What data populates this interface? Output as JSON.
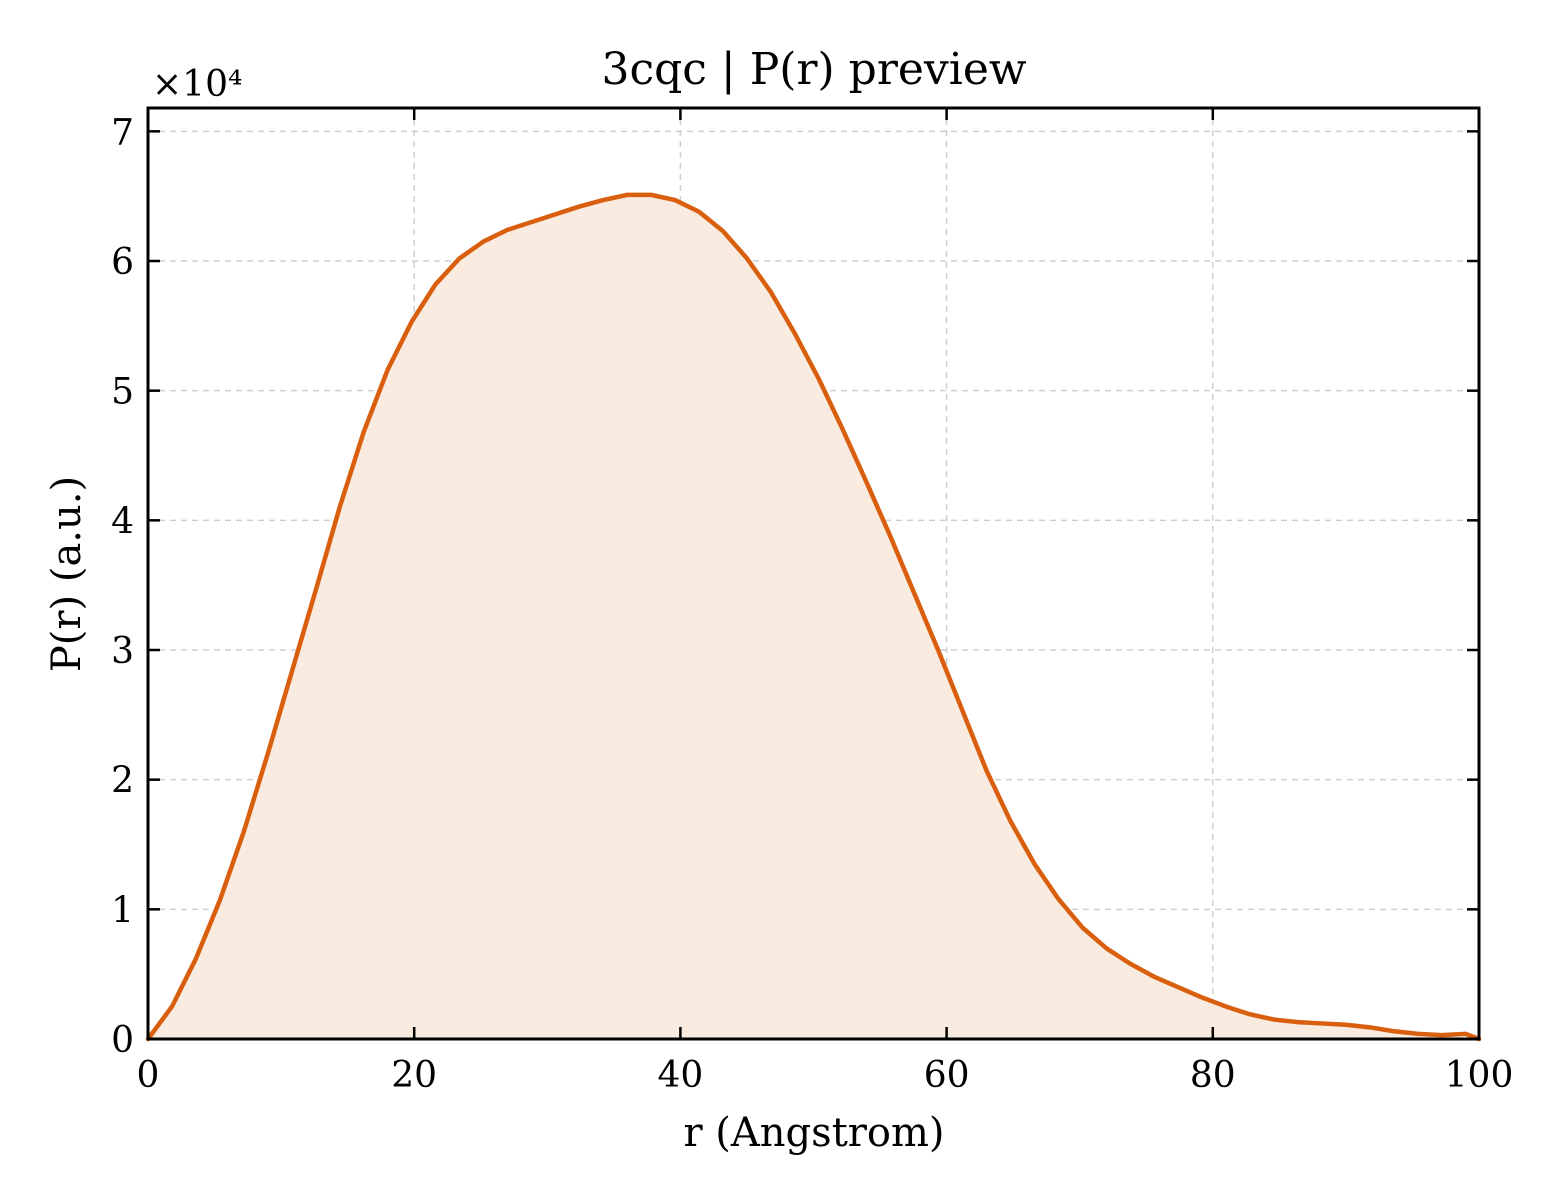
{
  "chart_data": {
    "type": "area",
    "title": "3cqc | P(r) preview",
    "xlabel": "r (Angstrom)",
    "ylabel": "P(r) (a.u.)",
    "y_multiplier": "×10⁴",
    "xlim": [
      0,
      100
    ],
    "ylim": [
      0,
      7.18
    ],
    "xticks": [
      0,
      20,
      40,
      60,
      80,
      100
    ],
    "yticks": [
      0,
      1,
      2,
      3,
      4,
      5,
      6,
      7
    ],
    "grid": true,
    "line_color": "#d95f0e",
    "fill_color": "#f9ebe0",
    "series": [
      {
        "x": [
          0,
          1.8,
          3.6,
          5.4,
          7.2,
          9.0,
          10.8,
          12.6,
          14.4,
          16.2,
          18.0,
          19.8,
          21.6,
          23.4,
          25.2,
          27.0,
          28.8,
          30.6,
          32.4,
          34.2,
          36.0,
          37.8,
          39.6,
          41.4,
          43.2,
          45.0,
          46.8,
          48.6,
          50.4,
          52.2,
          54.0,
          55.8,
          57.6,
          59.4,
          61.2,
          63.0,
          64.8,
          66.6,
          68.4,
          70.2,
          72.0,
          73.8,
          75.6,
          77.4,
          79.2,
          81.0,
          82.8,
          84.6,
          86.4,
          88.2,
          90.0,
          91.8,
          93.6,
          95.4,
          97.2,
          99.0,
          100
        ],
        "y": [
          0,
          0.25,
          0.62,
          1.07,
          1.6,
          2.2,
          2.83,
          3.46,
          4.1,
          4.68,
          5.16,
          5.53,
          5.82,
          6.02,
          6.15,
          6.24,
          6.3,
          6.36,
          6.42,
          6.47,
          6.51,
          6.51,
          6.47,
          6.38,
          6.23,
          6.02,
          5.76,
          5.44,
          5.09,
          4.7,
          4.29,
          3.87,
          3.43,
          2.99,
          2.53,
          2.07,
          1.68,
          1.35,
          1.08,
          0.86,
          0.7,
          0.58,
          0.48,
          0.4,
          0.32,
          0.25,
          0.19,
          0.15,
          0.13,
          0.12,
          0.11,
          0.09,
          0.06,
          0.04,
          0.03,
          0.04,
          0.0
        ]
      }
    ]
  }
}
